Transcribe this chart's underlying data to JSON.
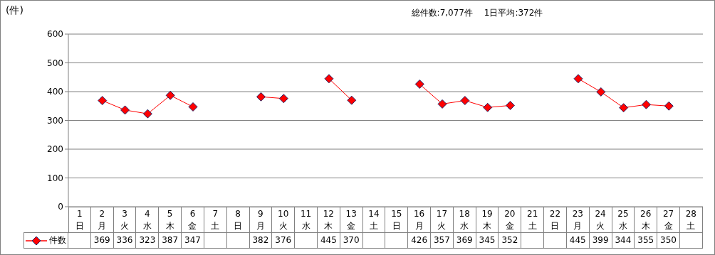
{
  "chart_data": {
    "type": "line",
    "title": "総件数:7,077件　 1日平均:372件",
    "ylabel": "(件)",
    "categories": [
      "1\n日",
      "2\n月",
      "3\n火",
      "4\n水",
      "5\n木",
      "6\n金",
      "7\n土",
      "8\n日",
      "9\n月",
      "10\n火",
      "11\n水",
      "12\n木",
      "13\n金",
      "14\n土",
      "15\n日",
      "16\n月",
      "17\n火",
      "18\n水",
      "19\n木",
      "20\n金",
      "21\n土",
      "22\n日",
      "23\n月",
      "24\n火",
      "25\n水",
      "26\n木",
      "27\n金",
      "28\n土"
    ],
    "series": [
      {
        "name": "件数",
        "color": "#ff0000",
        "values": [
          null,
          369,
          336,
          323,
          387,
          347,
          null,
          null,
          382,
          376,
          null,
          445,
          370,
          null,
          null,
          426,
          357,
          369,
          345,
          352,
          null,
          null,
          445,
          399,
          344,
          355,
          350,
          null
        ]
      }
    ],
    "ylim": [
      0,
      600
    ],
    "yticks": [
      0,
      100,
      200,
      300,
      400,
      500,
      600
    ],
    "grid": "y",
    "legend": "bottom",
    "marker": "diamond",
    "line_style": "solid",
    "data_labels": true
  }
}
